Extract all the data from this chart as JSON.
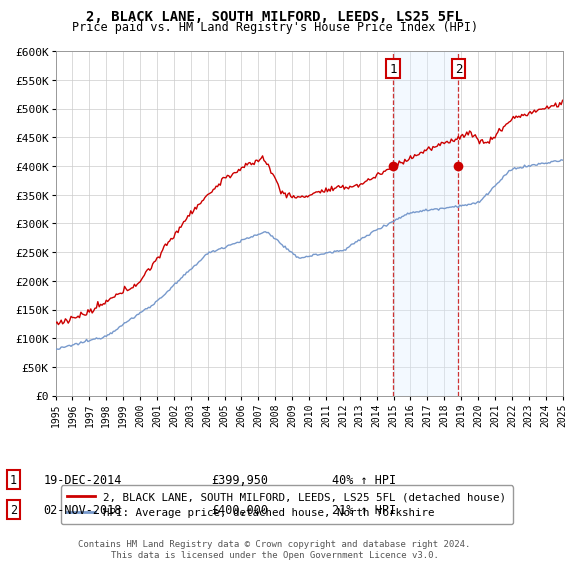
{
  "title": "2, BLACK LANE, SOUTH MILFORD, LEEDS, LS25 5FL",
  "subtitle": "Price paid vs. HM Land Registry's House Price Index (HPI)",
  "legend_line1": "2, BLACK LANE, SOUTH MILFORD, LEEDS, LS25 5FL (detached house)",
  "legend_line2": "HPI: Average price, detached house, North Yorkshire",
  "sale1_label": "1",
  "sale1_date": "19-DEC-2014",
  "sale1_price": "£399,950",
  "sale1_hpi": "40% ↑ HPI",
  "sale2_label": "2",
  "sale2_date": "02-NOV-2018",
  "sale2_price": "£400,000",
  "sale2_hpi": "21% ↑ HPI",
  "footer": "Contains HM Land Registry data © Crown copyright and database right 2024.\nThis data is licensed under the Open Government Licence v3.0.",
  "red_color": "#cc0000",
  "blue_color": "#7799cc",
  "shade_color": "#ddeeff",
  "ylim": [
    0,
    600000
  ],
  "yticks": [
    0,
    50000,
    100000,
    150000,
    200000,
    250000,
    300000,
    350000,
    400000,
    450000,
    500000,
    550000,
    600000
  ],
  "ytick_labels": [
    "£0",
    "£50K",
    "£100K",
    "£150K",
    "£200K",
    "£250K",
    "£300K",
    "£350K",
    "£400K",
    "£450K",
    "£500K",
    "£550K",
    "£600K"
  ],
  "sale1_x": 2014.96,
  "sale1_y": 399950,
  "sale2_x": 2018.84,
  "sale2_y": 400000,
  "vline1_x": 2014.96,
  "vline2_x": 2018.84,
  "xmin": 1995,
  "xmax": 2025
}
